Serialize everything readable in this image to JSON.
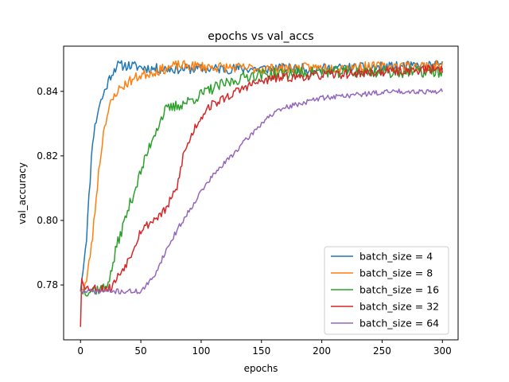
{
  "chart_data": {
    "type": "line",
    "title": "epochs vs val_accs",
    "xlabel": "epochs",
    "ylabel": "val_accuracy",
    "xlim": [
      -14,
      313
    ],
    "ylim": [
      0.763,
      0.854
    ],
    "xticks": [
      0,
      50,
      100,
      150,
      200,
      250,
      300
    ],
    "yticks": [
      0.78,
      0.8,
      0.82,
      0.84
    ],
    "ytick_labels": [
      "0.78",
      "0.80",
      "0.82",
      "0.84"
    ],
    "grid": false,
    "legend_position": "lower right",
    "series": [
      {
        "name": "batch_size = 4",
        "color": "#1f77b4",
        "start": 0.778,
        "points": [
          [
            0,
            0.778
          ],
          [
            5,
            0.795
          ],
          [
            10,
            0.825
          ],
          [
            15,
            0.835
          ],
          [
            20,
            0.84
          ],
          [
            25,
            0.845
          ],
          [
            30,
            0.848
          ],
          [
            40,
            0.848
          ],
          [
            60,
            0.847
          ],
          [
            100,
            0.847
          ],
          [
            200,
            0.847
          ],
          [
            300,
            0.848
          ]
        ],
        "noise": 0.0016,
        "seed": 11
      },
      {
        "name": "batch_size = 8",
        "color": "#ff7f0e",
        "start": 0.778,
        "points": [
          [
            0,
            0.778
          ],
          [
            5,
            0.781
          ],
          [
            10,
            0.795
          ],
          [
            15,
            0.815
          ],
          [
            20,
            0.83
          ],
          [
            25,
            0.836
          ],
          [
            30,
            0.84
          ],
          [
            40,
            0.843
          ],
          [
            50,
            0.845
          ],
          [
            80,
            0.848
          ],
          [
            150,
            0.847
          ],
          [
            300,
            0.848
          ]
        ],
        "noise": 0.0016,
        "seed": 23
      },
      {
        "name": "batch_size = 16",
        "color": "#2ca02c",
        "start": 0.778,
        "points": [
          [
            0,
            0.778
          ],
          [
            20,
            0.779
          ],
          [
            25,
            0.783
          ],
          [
            30,
            0.792
          ],
          [
            40,
            0.804
          ],
          [
            50,
            0.815
          ],
          [
            60,
            0.826
          ],
          [
            70,
            0.834
          ],
          [
            90,
            0.837
          ],
          [
            110,
            0.841
          ],
          [
            140,
            0.845
          ],
          [
            200,
            0.846
          ],
          [
            300,
            0.846
          ]
        ],
        "noise": 0.0018,
        "seed": 37
      },
      {
        "name": "batch_size = 32",
        "color": "#d62728",
        "start": 0.767,
        "points": [
          [
            0,
            0.767
          ],
          [
            1,
            0.782
          ],
          [
            5,
            0.779
          ],
          [
            25,
            0.779
          ],
          [
            30,
            0.782
          ],
          [
            40,
            0.788
          ],
          [
            50,
            0.797
          ],
          [
            60,
            0.8
          ],
          [
            70,
            0.803
          ],
          [
            80,
            0.81
          ],
          [
            85,
            0.82
          ],
          [
            95,
            0.829
          ],
          [
            105,
            0.835
          ],
          [
            120,
            0.838
          ],
          [
            140,
            0.842
          ],
          [
            160,
            0.844
          ],
          [
            200,
            0.845
          ],
          [
            300,
            0.847
          ]
        ],
        "noise": 0.0014,
        "seed": 53
      },
      {
        "name": "batch_size = 64",
        "color": "#9467bd",
        "start": 0.778,
        "points": [
          [
            0,
            0.778
          ],
          [
            50,
            0.778
          ],
          [
            55,
            0.78
          ],
          [
            60,
            0.782
          ],
          [
            70,
            0.79
          ],
          [
            80,
            0.797
          ],
          [
            90,
            0.803
          ],
          [
            100,
            0.809
          ],
          [
            110,
            0.814
          ],
          [
            125,
            0.82
          ],
          [
            140,
            0.826
          ],
          [
            155,
            0.832
          ],
          [
            170,
            0.835
          ],
          [
            200,
            0.838
          ],
          [
            230,
            0.839
          ],
          [
            260,
            0.84
          ],
          [
            300,
            0.84
          ]
        ],
        "noise": 0.0008,
        "seed": 71
      }
    ]
  }
}
